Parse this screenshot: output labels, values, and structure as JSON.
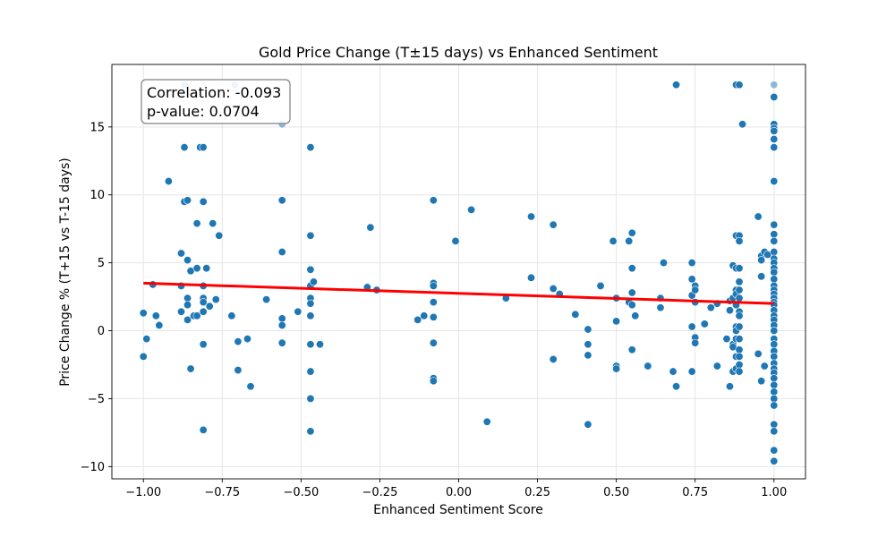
{
  "chart_data": {
    "type": "scatter",
    "title": "Gold Price Change (T±15 days) vs Enhanced Sentiment",
    "xlabel": "Enhanced Sentiment Score",
    "ylabel": "Price Change % (T+15 vs T-15 days)",
    "xlim": [
      -1.1,
      1.1
    ],
    "ylim": [
      -10.9,
      19.6
    ],
    "xticks": [
      -1.0,
      -0.75,
      -0.5,
      -0.25,
      0.0,
      0.25,
      0.5,
      0.75,
      1.0
    ],
    "xtick_labels": [
      "−1.00",
      "−0.75",
      "−0.50",
      "−0.25",
      "0.00",
      "0.25",
      "0.50",
      "0.75",
      "1.00"
    ],
    "yticks": [
      -10,
      -5,
      0,
      5,
      10,
      15
    ],
    "ytick_labels": [
      "−10",
      "−5",
      "0",
      "5",
      "10",
      "15"
    ],
    "grid": true,
    "annotation": {
      "line1": "Correlation: -0.093",
      "line2": "p-value: 0.0704"
    },
    "colors": {
      "points": "#1f77b4",
      "regression": "#ff0000",
      "grid": "#e5e5e5"
    },
    "regression": {
      "x": [
        -1.0,
        1.0
      ],
      "y": [
        3.5,
        2.0
      ]
    },
    "series": [
      {
        "points": [
          [
            -1.0,
            1.3
          ],
          [
            -1.0,
            -1.9
          ],
          [
            -0.99,
            -0.6
          ],
          [
            -0.97,
            3.4
          ],
          [
            -0.96,
            1.1
          ],
          [
            -0.95,
            0.4
          ],
          [
            -0.92,
            11.0
          ],
          [
            -0.88,
            1.4
          ],
          [
            -0.88,
            5.7
          ],
          [
            -0.88,
            3.3
          ],
          [
            -0.87,
            13.5
          ],
          [
            -0.87,
            9.5
          ],
          [
            -0.86,
            9.6
          ],
          [
            -0.86,
            5.2
          ],
          [
            -0.86,
            2.4
          ],
          [
            -0.86,
            1.9
          ],
          [
            -0.86,
            0.8
          ],
          [
            -0.85,
            -2.8
          ],
          [
            -0.85,
            4.4
          ],
          [
            -0.84,
            1.1
          ],
          [
            -0.83,
            4.6
          ],
          [
            -0.83,
            1.1
          ],
          [
            -0.83,
            7.9
          ],
          [
            -0.82,
            13.5
          ],
          [
            -0.81,
            13.5
          ],
          [
            -0.81,
            9.5
          ],
          [
            -0.81,
            3.3
          ],
          [
            -0.81,
            2.4
          ],
          [
            -0.81,
            2.1
          ],
          [
            -0.81,
            1.4
          ],
          [
            -0.81,
            -1.0
          ],
          [
            -0.81,
            -7.3
          ],
          [
            -0.8,
            4.6
          ],
          [
            -0.79,
            1.8
          ],
          [
            -0.78,
            7.9
          ],
          [
            -0.77,
            2.3
          ],
          [
            -0.76,
            7.0
          ],
          [
            -0.72,
            1.1
          ],
          [
            -0.7,
            -0.8
          ],
          [
            -0.7,
            -2.9
          ],
          [
            -0.67,
            -0.6
          ],
          [
            -0.66,
            -4.1
          ],
          [
            -0.61,
            2.3
          ],
          [
            -0.56,
            9.6
          ],
          [
            -0.56,
            5.8
          ],
          [
            -0.56,
            0.9
          ],
          [
            -0.56,
            0.4
          ],
          [
            -0.56,
            -0.9
          ],
          [
            -0.51,
            1.4
          ],
          [
            -0.47,
            13.5
          ],
          [
            -0.47,
            7.0
          ],
          [
            -0.47,
            4.5
          ],
          [
            -0.47,
            3.3
          ],
          [
            -0.47,
            2.4
          ],
          [
            -0.47,
            2.0
          ],
          [
            -0.47,
            1.1
          ],
          [
            -0.47,
            -1.0
          ],
          [
            -0.47,
            -3.0
          ],
          [
            -0.47,
            -5.0
          ],
          [
            -0.47,
            -7.4
          ],
          [
            -0.46,
            3.6
          ],
          [
            -0.44,
            -1.0
          ],
          [
            -0.29,
            3.2
          ],
          [
            -0.28,
            7.6
          ],
          [
            -0.26,
            3.0
          ],
          [
            -0.13,
            0.8
          ],
          [
            -0.11,
            1.1
          ],
          [
            -0.08,
            9.6
          ],
          [
            -0.08,
            3.5
          ],
          [
            -0.08,
            3.3
          ],
          [
            -0.08,
            2.1
          ],
          [
            -0.08,
            1.0
          ],
          [
            -0.08,
            -0.9
          ],
          [
            -0.08,
            -3.5
          ],
          [
            -0.08,
            -3.7
          ],
          [
            -0.01,
            6.6
          ],
          [
            0.04,
            8.9
          ],
          [
            0.09,
            -6.7
          ],
          [
            0.15,
            2.4
          ],
          [
            0.23,
            8.4
          ],
          [
            0.23,
            3.9
          ],
          [
            0.3,
            7.8
          ],
          [
            0.3,
            3.1
          ],
          [
            0.3,
            -2.1
          ],
          [
            0.32,
            2.7
          ],
          [
            0.37,
            1.2
          ],
          [
            0.41,
            0.1
          ],
          [
            0.41,
            -1.0
          ],
          [
            0.41,
            -1.8
          ],
          [
            0.41,
            -6.9
          ],
          [
            0.45,
            3.3
          ],
          [
            0.49,
            6.6
          ],
          [
            0.5,
            2.4
          ],
          [
            0.5,
            0.7
          ],
          [
            0.5,
            -2.6
          ],
          [
            0.5,
            -2.8
          ],
          [
            0.54,
            6.6
          ],
          [
            0.54,
            2.1
          ],
          [
            0.55,
            7.2
          ],
          [
            0.55,
            4.6
          ],
          [
            0.55,
            2.8
          ],
          [
            0.55,
            1.9
          ],
          [
            0.55,
            -1.4
          ],
          [
            0.56,
            1.1
          ],
          [
            0.6,
            -2.6
          ],
          [
            0.64,
            2.4
          ],
          [
            0.64,
            1.7
          ],
          [
            0.65,
            5.0
          ],
          [
            0.68,
            -3.0
          ],
          [
            0.69,
            18.1
          ],
          [
            0.69,
            -4.1
          ],
          [
            0.74,
            5.0
          ],
          [
            0.74,
            3.8
          ],
          [
            0.74,
            2.6
          ],
          [
            0.74,
            0.3
          ],
          [
            0.74,
            -3.0
          ],
          [
            0.75,
            3.3
          ],
          [
            0.75,
            3.0
          ],
          [
            0.75,
            2.1
          ],
          [
            0.75,
            -0.5
          ],
          [
            0.75,
            -0.9
          ],
          [
            0.78,
            0.5
          ],
          [
            0.8,
            1.7
          ],
          [
            0.82,
            2.0
          ],
          [
            0.82,
            -2.6
          ],
          [
            0.85,
            -0.6
          ],
          [
            0.86,
            2.2
          ],
          [
            0.86,
            1.5
          ],
          [
            0.86,
            -4.1
          ],
          [
            0.87,
            4.8
          ],
          [
            0.87,
            2.4
          ],
          [
            0.87,
            -1.0
          ],
          [
            0.87,
            -1.2
          ],
          [
            0.87,
            -3.0
          ],
          [
            0.88,
            18.1
          ],
          [
            0.88,
            7.0
          ],
          [
            0.88,
            4.6
          ],
          [
            0.88,
            3.0
          ],
          [
            0.88,
            2.7
          ],
          [
            0.88,
            1.9
          ],
          [
            0.88,
            0.3
          ],
          [
            0.88,
            0.0
          ],
          [
            0.88,
            -0.6
          ],
          [
            0.88,
            -1.9
          ],
          [
            0.88,
            -2.8
          ],
          [
            0.89,
            18.1
          ],
          [
            0.89,
            7.0
          ],
          [
            0.89,
            6.6
          ],
          [
            0.89,
            4.6
          ],
          [
            0.89,
            3.6
          ],
          [
            0.89,
            3.0
          ],
          [
            0.89,
            2.4
          ],
          [
            0.89,
            1.4
          ],
          [
            0.89,
            1.1
          ],
          [
            0.89,
            0.3
          ],
          [
            0.89,
            -0.6
          ],
          [
            0.89,
            -1.4
          ],
          [
            0.89,
            -1.9
          ],
          [
            0.89,
            -2.5
          ],
          [
            0.89,
            -3.0
          ],
          [
            0.9,
            15.2
          ],
          [
            0.95,
            8.4
          ],
          [
            0.95,
            -1.7
          ],
          [
            0.96,
            5.5
          ],
          [
            0.96,
            5.2
          ],
          [
            0.96,
            4.0
          ],
          [
            0.96,
            -3.7
          ],
          [
            0.97,
            5.8
          ],
          [
            0.97,
            -2.6
          ],
          [
            0.98,
            5.6
          ],
          [
            1.0,
            17.2
          ],
          [
            1.0,
            15.2
          ],
          [
            1.0,
            14.9
          ],
          [
            1.0,
            14.7
          ],
          [
            1.0,
            14.1
          ],
          [
            1.0,
            13.5
          ],
          [
            1.0,
            11.0
          ],
          [
            1.0,
            7.8
          ],
          [
            1.0,
            7.1
          ],
          [
            1.0,
            6.6
          ],
          [
            1.0,
            5.8
          ],
          [
            1.0,
            5.3
          ],
          [
            1.0,
            5.0
          ],
          [
            1.0,
            4.6
          ],
          [
            1.0,
            4.3
          ],
          [
            1.0,
            3.8
          ],
          [
            1.0,
            3.3
          ],
          [
            1.0,
            3.0
          ],
          [
            1.0,
            2.7
          ],
          [
            1.0,
            2.4
          ],
          [
            1.0,
            2.1
          ],
          [
            1.0,
            1.9
          ],
          [
            1.0,
            1.5
          ],
          [
            1.0,
            1.1
          ],
          [
            1.0,
            0.8
          ],
          [
            1.0,
            0.4
          ],
          [
            1.0,
            0.0
          ],
          [
            1.0,
            -0.6
          ],
          [
            1.0,
            -1.0
          ],
          [
            1.0,
            -1.5
          ],
          [
            1.0,
            -1.9
          ],
          [
            1.0,
            -2.4
          ],
          [
            1.0,
            -2.8
          ],
          [
            1.0,
            -3.1
          ],
          [
            1.0,
            -3.5
          ],
          [
            1.0,
            -4.0
          ],
          [
            1.0,
            -4.5
          ],
          [
            1.0,
            -5.0
          ],
          [
            1.0,
            -5.5
          ],
          [
            1.0,
            -6.9
          ],
          [
            1.0,
            -7.4
          ],
          [
            1.0,
            -8.8
          ],
          [
            1.0,
            -9.6
          ]
        ]
      },
      {
        "opacity": 0.5,
        "points": [
          [
            -0.87,
            18.1
          ],
          [
            -0.71,
            18.1
          ],
          [
            -0.56,
            15.2
          ],
          [
            1.0,
            18.1
          ]
        ]
      }
    ]
  }
}
